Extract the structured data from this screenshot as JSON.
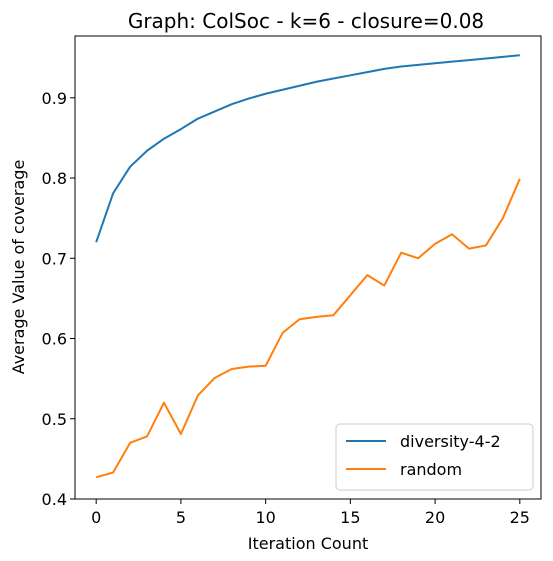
{
  "chart_data": {
    "type": "line",
    "title": "Graph: ColSoc - k=6 - closure=0.08",
    "xlabel": "Iteration Count",
    "ylabel": "Average Value of coverage",
    "xlim": [
      -1.25,
      26.25
    ],
    "ylim": [
      0.4,
      0.977
    ],
    "xticks": [
      0,
      5,
      10,
      15,
      20,
      25
    ],
    "yticks": [
      0.4,
      0.5,
      0.6,
      0.7,
      0.8,
      0.9
    ],
    "xtick_labels": [
      "0",
      "5",
      "10",
      "15",
      "20",
      "25"
    ],
    "ytick_labels": [
      "0.4",
      "0.5",
      "0.6",
      "0.7",
      "0.8",
      "0.9"
    ],
    "grid": false,
    "legend_position": "lower-right",
    "x": [
      0,
      1,
      2,
      3,
      4,
      5,
      6,
      7,
      8,
      9,
      10,
      11,
      12,
      13,
      14,
      15,
      16,
      17,
      18,
      19,
      20,
      21,
      22,
      23,
      24,
      25
    ],
    "series": [
      {
        "name": "diversity-4-2",
        "color": "#1f77b4",
        "values": [
          0.72,
          0.781,
          0.814,
          0.834,
          0.849,
          0.861,
          0.874,
          0.883,
          0.892,
          0.899,
          0.905,
          0.91,
          0.915,
          0.92,
          0.924,
          0.928,
          0.932,
          0.936,
          0.939,
          0.941,
          0.943,
          0.945,
          0.947,
          0.949,
          0.951,
          0.953
        ]
      },
      {
        "name": "random",
        "color": "#ff7f0e",
        "values": [
          0.427,
          0.433,
          0.47,
          0.478,
          0.52,
          0.481,
          0.529,
          0.551,
          0.562,
          0.565,
          0.566,
          0.607,
          0.624,
          0.627,
          0.629,
          0.654,
          0.679,
          0.666,
          0.707,
          0.7,
          0.718,
          0.73,
          0.712,
          0.716,
          0.75,
          0.799
        ]
      }
    ]
  }
}
